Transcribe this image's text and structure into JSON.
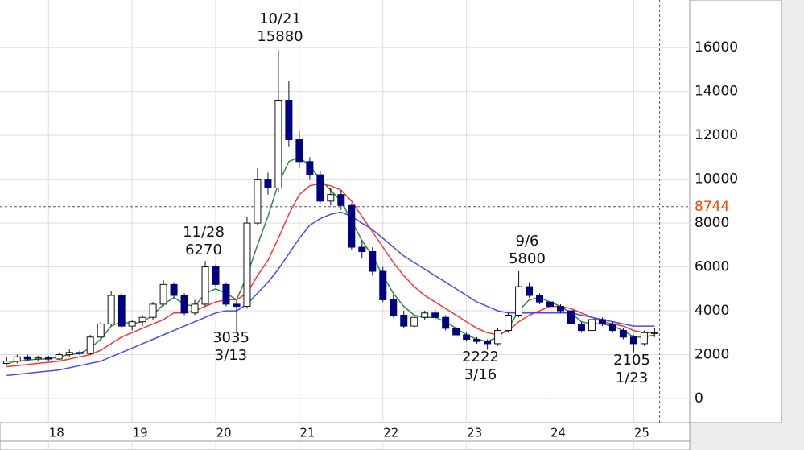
{
  "chart_data": {
    "type": "candlestick",
    "x": [
      2017.5,
      2017.625,
      2017.75,
      2017.875,
      2018.0,
      2018.125,
      2018.25,
      2018.375,
      2018.5,
      2018.625,
      2018.75,
      2018.875,
      2019.0,
      2019.125,
      2019.25,
      2019.375,
      2019.5,
      2019.625,
      2019.75,
      2019.875,
      2020.0,
      2020.125,
      2020.25,
      2020.375,
      2020.5,
      2020.625,
      2020.75,
      2020.875,
      2021.0,
      2021.125,
      2021.25,
      2021.375,
      2021.5,
      2021.625,
      2021.75,
      2021.875,
      2022.0,
      2022.125,
      2022.25,
      2022.375,
      2022.5,
      2022.625,
      2022.75,
      2022.875,
      2023.0,
      2023.125,
      2023.25,
      2023.375,
      2023.5,
      2023.625,
      2023.75,
      2023.875,
      2024.0,
      2024.125,
      2024.25,
      2024.375,
      2024.5,
      2024.625,
      2024.75,
      2024.875,
      2025.0,
      2025.125,
      2025.25
    ],
    "open": [
      1600,
      1700,
      1900,
      1800,
      1850,
      1800,
      2000,
      2100,
      2050,
      2800,
      3400,
      4700,
      3300,
      3500,
      3700,
      4300,
      5200,
      4700,
      3900,
      4300,
      6000,
      5200,
      4300,
      4200,
      8000,
      10000,
      9600,
      13600,
      11800,
      10800,
      10200,
      9000,
      9300,
      8800,
      6900,
      6700,
      5800,
      4500,
      3800,
      3300,
      3700,
      3900,
      3700,
      3200,
      2900,
      2700,
      2600,
      2500,
      3100,
      3800,
      5100,
      4700,
      4400,
      4200,
      4000,
      3400,
      3100,
      3600,
      3400,
      3100,
      2800,
      2500,
      3000
    ],
    "high": [
      1900,
      2000,
      2000,
      1950,
      1950,
      2100,
      2250,
      2200,
      2900,
      3500,
      4900,
      4800,
      3600,
      3800,
      4400,
      5400,
      5300,
      4800,
      4500,
      6270,
      6100,
      5300,
      4500,
      8300,
      10500,
      10300,
      15880,
      14500,
      12200,
      11000,
      10400,
      9600,
      9500,
      8900,
      7200,
      6900,
      6000,
      4700,
      4000,
      3800,
      4000,
      4100,
      3800,
      3300,
      3000,
      2800,
      2700,
      3200,
      3900,
      5800,
      5300,
      4800,
      4500,
      4300,
      4100,
      3500,
      3700,
      3700,
      3500,
      3200,
      2900,
      3100,
      3200
    ],
    "low": [
      1500,
      1600,
      1700,
      1700,
      1700,
      1750,
      1900,
      1950,
      2000,
      2700,
      3300,
      3200,
      3100,
      3300,
      3600,
      4200,
      4600,
      3800,
      3800,
      4200,
      5100,
      4200,
      3035,
      4100,
      7900,
      9300,
      9400,
      11500,
      10500,
      10000,
      8900,
      8800,
      8600,
      6800,
      6400,
      5600,
      4400,
      3700,
      3200,
      3200,
      3600,
      3600,
      3100,
      2800,
      2600,
      2500,
      2222,
      2400,
      3000,
      3700,
      4600,
      4300,
      4100,
      3900,
      3300,
      3000,
      3000,
      3300,
      3000,
      2700,
      2105,
      2400,
      2800
    ],
    "close": [
      1700,
      1900,
      1800,
      1850,
      1800,
      2000,
      2100,
      2050,
      2800,
      3400,
      4700,
      3300,
      3500,
      3700,
      4300,
      5200,
      4700,
      3900,
      4300,
      6000,
      5200,
      4300,
      4200,
      8000,
      10000,
      9600,
      13600,
      11800,
      10800,
      10200,
      9000,
      9300,
      8800,
      6900,
      6700,
      5800,
      4500,
      3800,
      3300,
      3700,
      3900,
      3700,
      3200,
      2900,
      2700,
      2600,
      2500,
      3100,
      3800,
      5100,
      4700,
      4400,
      4200,
      4000,
      3400,
      3100,
      3600,
      3400,
      3100,
      2800,
      2500,
      3000,
      3000
    ],
    "series": [
      {
        "color": "#2e8b3a",
        "values": [
          1600,
          1700,
          1750,
          1800,
          1800,
          1900,
          2000,
          2050,
          2300,
          2700,
          3300,
          3500,
          3400,
          3500,
          3800,
          4300,
          4600,
          4300,
          4200,
          4800,
          5000,
          4800,
          4500,
          5600,
          7000,
          8300,
          9800,
          10800,
          11000,
          10600,
          10000,
          9500,
          9000,
          8100,
          7200,
          6500,
          5600,
          4800,
          4200,
          3800,
          3700,
          3700,
          3500,
          3200,
          2900,
          2700,
          2600,
          2800,
          3200,
          4000,
          4500,
          4600,
          4400,
          4200,
          3900,
          3500,
          3400,
          3400,
          3300,
          3100,
          2800,
          2800,
          2900
        ]
      },
      {
        "color": "#ff3333",
        "values": [
          1450,
          1500,
          1550,
          1600,
          1650,
          1700,
          1800,
          1900,
          2000,
          2200,
          2500,
          2800,
          3000,
          3200,
          3400,
          3600,
          3900,
          3900,
          4000,
          4200,
          4400,
          4500,
          4500,
          4800,
          5600,
          6300,
          7300,
          8400,
          9300,
          9700,
          9800,
          9700,
          9500,
          9000,
          8300,
          7600,
          6900,
          6200,
          5600,
          5100,
          4700,
          4400,
          4100,
          3800,
          3500,
          3200,
          3000,
          2900,
          3100,
          3500,
          3800,
          4000,
          4200,
          4200,
          4100,
          3900,
          3700,
          3500,
          3400,
          3300,
          3100,
          3000,
          3000
        ]
      },
      {
        "color": "#4a4af0",
        "values": [
          1050,
          1100,
          1150,
          1200,
          1250,
          1300,
          1400,
          1500,
          1600,
          1700,
          1900,
          2100,
          2300,
          2500,
          2700,
          2900,
          3100,
          3300,
          3500,
          3700,
          3900,
          4000,
          4000,
          4300,
          4800,
          5300,
          5900,
          6600,
          7300,
          7900,
          8200,
          8400,
          8500,
          8300,
          8000,
          7700,
          7300,
          6900,
          6500,
          6200,
          5900,
          5600,
          5300,
          5000,
          4700,
          4400,
          4200,
          4000,
          3900,
          3900,
          3900,
          3900,
          3900,
          3900,
          3900,
          3800,
          3700,
          3600,
          3500,
          3400,
          3300,
          3300,
          3300
        ]
      }
    ],
    "xlim": [
      2017.42,
      2025.67
    ],
    "xticks": [
      {
        "value": 2018,
        "label": "18"
      },
      {
        "value": 2019,
        "label": "19"
      },
      {
        "value": 2020,
        "label": "20"
      },
      {
        "value": 2021,
        "label": "21"
      },
      {
        "value": 2022,
        "label": "22"
      },
      {
        "value": 2023,
        "label": "23"
      },
      {
        "value": 2024,
        "label": "24"
      },
      {
        "value": 2025,
        "label": "25"
      }
    ],
    "ylim": [
      -1100,
      18170
    ],
    "yticks": [
      0,
      2000,
      4000,
      6000,
      8000,
      10000,
      12000,
      14000,
      16000
    ],
    "grid": true,
    "last_price": 8744,
    "last_price_color": "#ff4500",
    "cursor_x": 2025.31,
    "up_color": "#ffffff",
    "down_color": "#000080",
    "annotations": [
      {
        "date": "10/21",
        "price": "15880"
      },
      {
        "date": "11/28",
        "price": "6270"
      },
      {
        "date": "3/13",
        "price": "3035"
      },
      {
        "date": "3/16",
        "price": "2222"
      },
      {
        "date": "9/6",
        "price": "5800"
      },
      {
        "date": "1/23",
        "price": "2105"
      }
    ]
  }
}
